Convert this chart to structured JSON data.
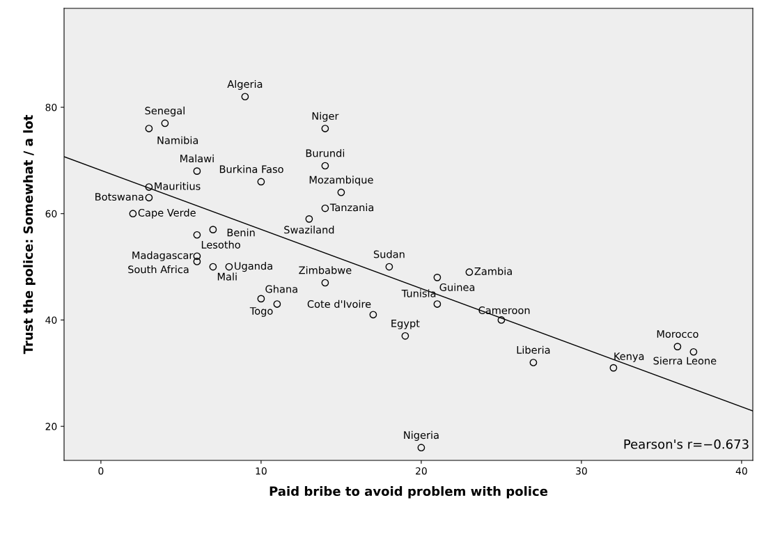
{
  "chart_data": {
    "type": "scatter",
    "xlabel": "Paid bribe to avoid problem with police",
    "ylabel": "Trust the police: Somewhat / a lot",
    "xlim": [
      -2.3,
      40.7
    ],
    "ylim": [
      13.6,
      98.6
    ],
    "xticks": [
      0,
      10,
      20,
      30,
      40
    ],
    "yticks": [
      20,
      40,
      60,
      80
    ],
    "grid": false,
    "series": [
      {
        "marker": "circle",
        "color": "#000000",
        "x": [
          9,
          4,
          3,
          14,
          14,
          6,
          10,
          15,
          3,
          3,
          14,
          2,
          13,
          7,
          6,
          6,
          6,
          7,
          8,
          18,
          23,
          21,
          14,
          21,
          10,
          11,
          17,
          25,
          19,
          36,
          37,
          27,
          32,
          20
        ],
        "values": [
          82,
          77,
          76,
          76,
          69,
          68,
          66,
          64,
          65,
          63,
          61,
          60,
          59,
          57,
          56,
          52,
          51,
          50,
          50,
          50,
          49,
          48,
          47,
          43,
          44,
          43,
          41,
          40,
          37,
          35,
          34,
          32,
          31,
          16
        ]
      },
      {
        "type": "line",
        "color": "#000000",
        "line_style": "solid",
        "x": [
          -2.3,
          40.7
        ],
        "values": [
          70.7,
          22.9
        ]
      }
    ],
    "annotations": [
      {
        "text": "Algeria",
        "x": 9,
        "y": 82
      },
      {
        "text": "Senegal",
        "x": 4,
        "y": 77
      },
      {
        "text": "Namibia",
        "x": 3,
        "y": 76
      },
      {
        "text": "Niger",
        "x": 14,
        "y": 76
      },
      {
        "text": "Burundi",
        "x": 14,
        "y": 69
      },
      {
        "text": "Malawi",
        "x": 6,
        "y": 68
      },
      {
        "text": "Burkina Faso",
        "x": 10,
        "y": 66
      },
      {
        "text": "Mozambique",
        "x": 15,
        "y": 64
      },
      {
        "text": "Mauritius",
        "x": 3,
        "y": 65
      },
      {
        "text": "Botswana",
        "x": 3,
        "y": 63
      },
      {
        "text": "Tanzania",
        "x": 14,
        "y": 61
      },
      {
        "text": "Cape Verde",
        "x": 2,
        "y": 60
      },
      {
        "text": "Swaziland",
        "x": 13,
        "y": 59
      },
      {
        "text": "Benin",
        "x": 7,
        "y": 57
      },
      {
        "text": "Lesotho",
        "x": 6,
        "y": 56
      },
      {
        "text": "Madagascar",
        "x": 6,
        "y": 52
      },
      {
        "text": "South Africa",
        "x": 6,
        "y": 51
      },
      {
        "text": "Mali",
        "x": 7,
        "y": 50
      },
      {
        "text": "Uganda",
        "x": 8,
        "y": 50
      },
      {
        "text": "Sudan",
        "x": 18,
        "y": 50
      },
      {
        "text": "Zambia",
        "x": 23,
        "y": 49
      },
      {
        "text": "Guinea",
        "x": 21,
        "y": 48
      },
      {
        "text": "Zimbabwe",
        "x": 14,
        "y": 47
      },
      {
        "text": "Tunisia",
        "x": 21,
        "y": 43
      },
      {
        "text": "Ghana",
        "x": 10,
        "y": 44
      },
      {
        "text": "Togo",
        "x": 11,
        "y": 43
      },
      {
        "text": "Cote d'Ivoire",
        "x": 17,
        "y": 41
      },
      {
        "text": "Cameroon",
        "x": 25,
        "y": 40
      },
      {
        "text": "Egypt",
        "x": 19,
        "y": 37
      },
      {
        "text": "Morocco",
        "x": 36,
        "y": 35
      },
      {
        "text": "Sierra Leone",
        "x": 37,
        "y": 34
      },
      {
        "text": "Liberia",
        "x": 27,
        "y": 32
      },
      {
        "text": "Kenya",
        "x": 32,
        "y": 31
      },
      {
        "text": "Nigeria",
        "x": 20,
        "y": 16
      },
      "Pearson's r=−0.673"
    ]
  }
}
